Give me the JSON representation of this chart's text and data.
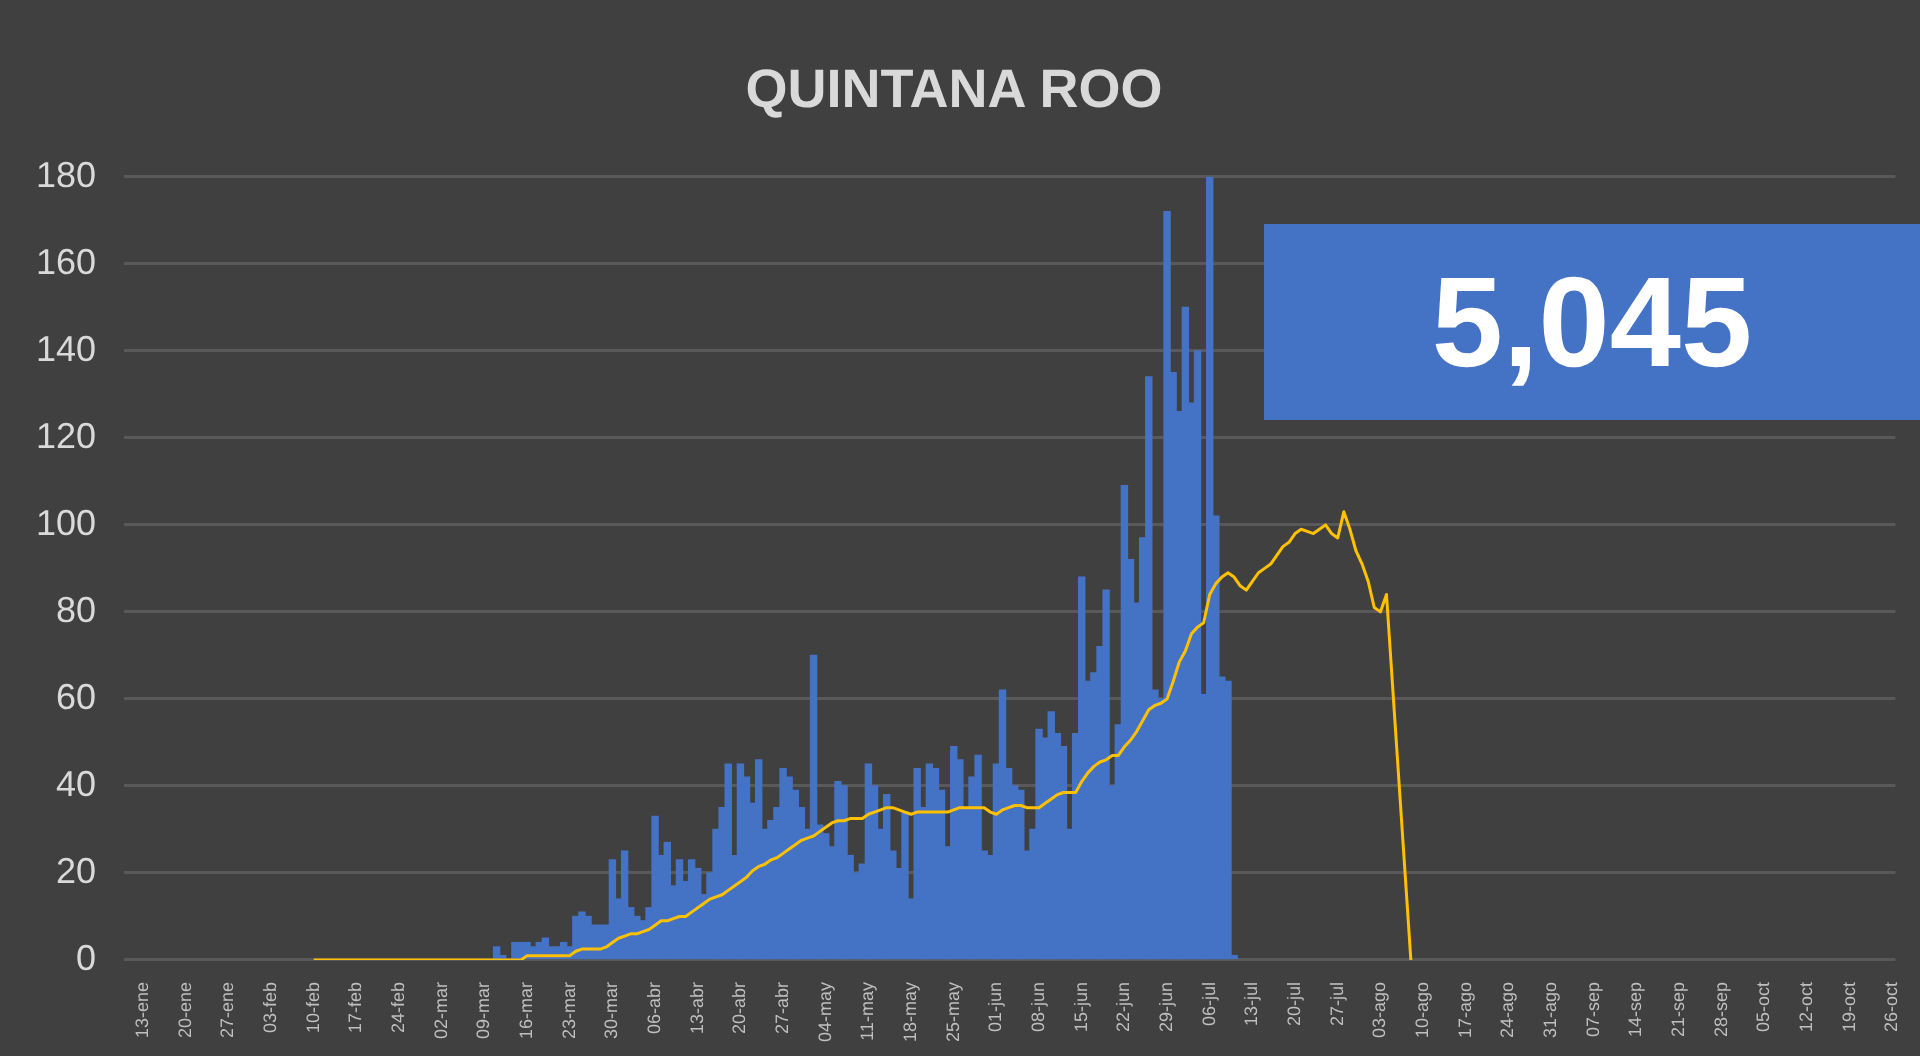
{
  "chart_data": {
    "type": "bar",
    "title": "QUINTANA ROO",
    "categories": [
      "13-ene",
      null,
      null,
      null,
      null,
      null,
      null,
      "20-ene",
      null,
      null,
      null,
      null,
      null,
      null,
      "27-ene",
      null,
      null,
      null,
      null,
      null,
      null,
      "03-feb",
      null,
      null,
      null,
      null,
      null,
      null,
      "10-feb",
      null,
      null,
      null,
      null,
      null,
      null,
      "17-feb",
      null,
      null,
      null,
      null,
      null,
      null,
      "24-feb",
      null,
      null,
      null,
      null,
      null,
      null,
      "02-mar",
      null,
      null,
      null,
      null,
      null,
      null,
      "09-mar",
      null,
      null,
      null,
      null,
      null,
      null,
      "16-mar",
      null,
      null,
      null,
      null,
      null,
      null,
      "23-mar",
      null,
      null,
      null,
      null,
      null,
      null,
      "30-mar",
      null,
      null,
      null,
      null,
      null,
      null,
      "06-abr",
      null,
      null,
      null,
      null,
      null,
      null,
      "13-abr",
      null,
      null,
      null,
      null,
      null,
      null,
      "20-abr",
      null,
      null,
      null,
      null,
      null,
      null,
      "27-abr",
      null,
      null,
      null,
      null,
      null,
      null,
      "04-may",
      null,
      null,
      null,
      null,
      null,
      null,
      "11-may",
      null,
      null,
      null,
      null,
      null,
      null,
      "18-may",
      null,
      null,
      null,
      null,
      null,
      null,
      "25-may",
      null,
      null,
      null,
      null,
      null,
      null,
      "01-jun",
      null,
      null,
      null,
      null,
      null,
      null,
      "08-jun",
      null,
      null,
      null,
      null,
      null,
      null,
      "15-jun",
      null,
      null,
      null,
      null,
      null,
      null,
      "22-jun",
      null,
      null,
      null,
      null,
      null,
      null,
      "29-jun",
      null,
      null,
      null,
      null,
      null,
      null,
      "06-jul",
      null,
      null,
      null,
      null,
      null,
      null,
      "13-jul",
      null,
      null,
      null,
      null,
      null,
      null,
      "20-jul",
      null,
      null,
      null,
      null,
      null,
      null,
      "27-jul",
      null,
      null,
      null,
      null,
      null,
      null,
      "03-ago",
      null,
      null,
      null,
      null,
      null,
      null,
      "10-ago",
      null,
      null,
      null,
      null,
      null,
      null,
      "17-ago",
      null,
      null,
      null,
      null,
      null,
      null,
      "24-ago",
      null,
      null,
      null,
      null,
      null,
      null,
      "31-ago",
      null,
      null,
      null,
      null,
      null,
      null,
      "07-sep",
      null,
      null,
      null,
      null,
      null,
      null,
      "14-sep",
      null,
      null,
      null,
      null,
      null,
      null,
      "21-sep",
      null,
      null,
      null,
      null,
      null,
      null,
      "28-sep",
      null,
      null,
      null,
      null,
      null,
      null,
      "05-oct",
      null,
      null,
      null,
      null,
      null,
      null,
      "12-oct",
      null,
      null,
      null,
      null,
      null,
      null,
      "19-oct",
      null,
      null,
      null,
      null,
      null,
      null,
      "26-oct"
    ],
    "series": [
      {
        "color": "#4472c4",
        "values": [
          null,
          null,
          null,
          null,
          null,
          null,
          null,
          null,
          null,
          null,
          null,
          null,
          null,
          null,
          null,
          null,
          null,
          null,
          null,
          null,
          null,
          null,
          null,
          null,
          null,
          null,
          null,
          null,
          null,
          null,
          null,
          null,
          null,
          null,
          null,
          null,
          null,
          null,
          null,
          null,
          null,
          null,
          null,
          null,
          null,
          null,
          null,
          null,
          null,
          null,
          null,
          null,
          null,
          null,
          null,
          null,
          null,
          null,
          3,
          1,
          0,
          4,
          4,
          4,
          3,
          4,
          5,
          3,
          3,
          4,
          3,
          10,
          11,
          10,
          8,
          8,
          8,
          23,
          14,
          25,
          12,
          10,
          9,
          12,
          33,
          24,
          27,
          17,
          23,
          18,
          23,
          21,
          15,
          20,
          30,
          35,
          45,
          24,
          45,
          42,
          36,
          46,
          30,
          32,
          35,
          44,
          42,
          39,
          35,
          30,
          70,
          31,
          29,
          26,
          41,
          40,
          24,
          20,
          22,
          45,
          40,
          30,
          38,
          25,
          21,
          34,
          14,
          44,
          35,
          45,
          44,
          39,
          26,
          49,
          46,
          35,
          42,
          47,
          25,
          24,
          45,
          62,
          44,
          40,
          39,
          25,
          30,
          53,
          51,
          57,
          52,
          49,
          30,
          52,
          88,
          64,
          66,
          72,
          85,
          40,
          54,
          109,
          92,
          82,
          97,
          134,
          62,
          60,
          172,
          135,
          126,
          150,
          128,
          140,
          61,
          180,
          102,
          65,
          64,
          1,
          null,
          null,
          null,
          null,
          null,
          null,
          null,
          null,
          null,
          null,
          null,
          null,
          null,
          null,
          null,
          null,
          null,
          null,
          null,
          null,
          null,
          null,
          null,
          null,
          null,
          null,
          null,
          null,
          null,
          null,
          null,
          null,
          null,
          null,
          null,
          null,
          null,
          null,
          null,
          null,
          null,
          null,
          null,
          null,
          null,
          null,
          null,
          null,
          null,
          null,
          null,
          null,
          null,
          null,
          null,
          null,
          null,
          null,
          null,
          null,
          null,
          null,
          null,
          null,
          null,
          null,
          null,
          null,
          null,
          null,
          null,
          null,
          null,
          null,
          null,
          null,
          null,
          null,
          null,
          null,
          null,
          null,
          null,
          null,
          null,
          null,
          null,
          null,
          null,
          null,
          null,
          null,
          null,
          null,
          null,
          null,
          null,
          null,
          null,
          null,
          null,
          null,
          null,
          null,
          null,
          null,
          null,
          null
        ]
      },
      {
        "type": "line",
        "color": "#ffc000",
        "values": [
          null,
          null,
          null,
          null,
          null,
          null,
          null,
          null,
          null,
          null,
          null,
          null,
          null,
          null,
          null,
          null,
          null,
          null,
          null,
          null,
          null,
          null,
          null,
          null,
          null,
          null,
          null,
          null,
          0,
          0,
          0,
          0,
          0,
          0,
          0,
          0,
          0,
          0,
          0,
          0,
          0,
          0,
          0,
          0,
          0,
          0,
          0,
          0,
          0,
          0,
          0,
          0,
          0,
          0,
          0,
          0,
          0,
          0,
          0,
          0,
          0,
          0,
          0,
          1,
          1,
          1,
          1,
          1,
          1,
          1,
          1,
          2,
          2.5,
          2.5,
          2.5,
          2.5,
          3,
          4,
          5,
          5.5,
          6,
          6,
          6.5,
          7,
          8,
          9,
          9,
          9.5,
          10,
          10,
          11,
          12,
          13,
          14,
          14.5,
          15,
          16,
          17,
          18,
          19,
          20.5,
          21.5,
          22,
          23,
          23.5,
          24.5,
          25.5,
          26.5,
          27.5,
          28,
          28.5,
          29.5,
          30.5,
          31.5,
          32,
          32,
          32.5,
          32.5,
          32.5,
          33.5,
          34,
          34.5,
          35,
          35,
          34.5,
          34,
          33.5,
          34,
          34,
          34,
          34,
          34,
          34,
          34.5,
          35,
          35,
          35,
          35,
          35,
          34,
          33.5,
          34.5,
          35,
          35.5,
          35.5,
          35,
          35,
          35,
          36,
          37,
          38,
          38.5,
          38.5,
          38.5,
          41,
          43,
          44.5,
          45.5,
          46,
          47,
          47,
          49,
          50.5,
          52.5,
          55,
          57.5,
          58.5,
          59,
          60,
          64,
          68.5,
          71,
          75,
          76.5,
          77.5,
          84,
          86.5,
          88,
          89,
          88,
          86,
          85,
          87,
          89,
          90,
          91,
          93,
          95,
          96,
          98,
          99,
          98.5,
          98,
          99,
          100,
          98,
          97,
          103,
          99,
          94,
          91,
          87,
          81,
          80,
          84,
          63,
          42,
          21,
          0,
          null,
          null,
          null,
          null,
          null,
          null,
          null,
          null,
          null,
          null,
          null,
          null,
          null,
          null,
          null,
          null,
          null,
          null,
          null,
          null,
          null,
          null,
          null,
          null,
          null,
          null,
          null,
          null,
          null,
          null,
          null,
          null,
          null,
          null,
          null,
          null,
          null,
          null,
          null,
          null,
          null,
          null,
          null,
          null,
          null,
          null,
          null,
          null,
          null,
          null,
          null,
          null,
          null,
          null,
          null,
          null,
          null,
          null,
          null,
          null,
          null,
          null,
          null,
          null,
          null,
          null,
          null,
          null,
          null,
          null,
          null,
          null,
          null,
          null,
          null,
          null,
          null,
          null,
          null
        ]
      }
    ],
    "ylim": [
      0,
      180
    ],
    "yticks": [
      0,
      20,
      40,
      60,
      80,
      100,
      120,
      140,
      160,
      180
    ],
    "grid": "y",
    "legend": false,
    "annotations": [
      "5,045"
    ]
  }
}
